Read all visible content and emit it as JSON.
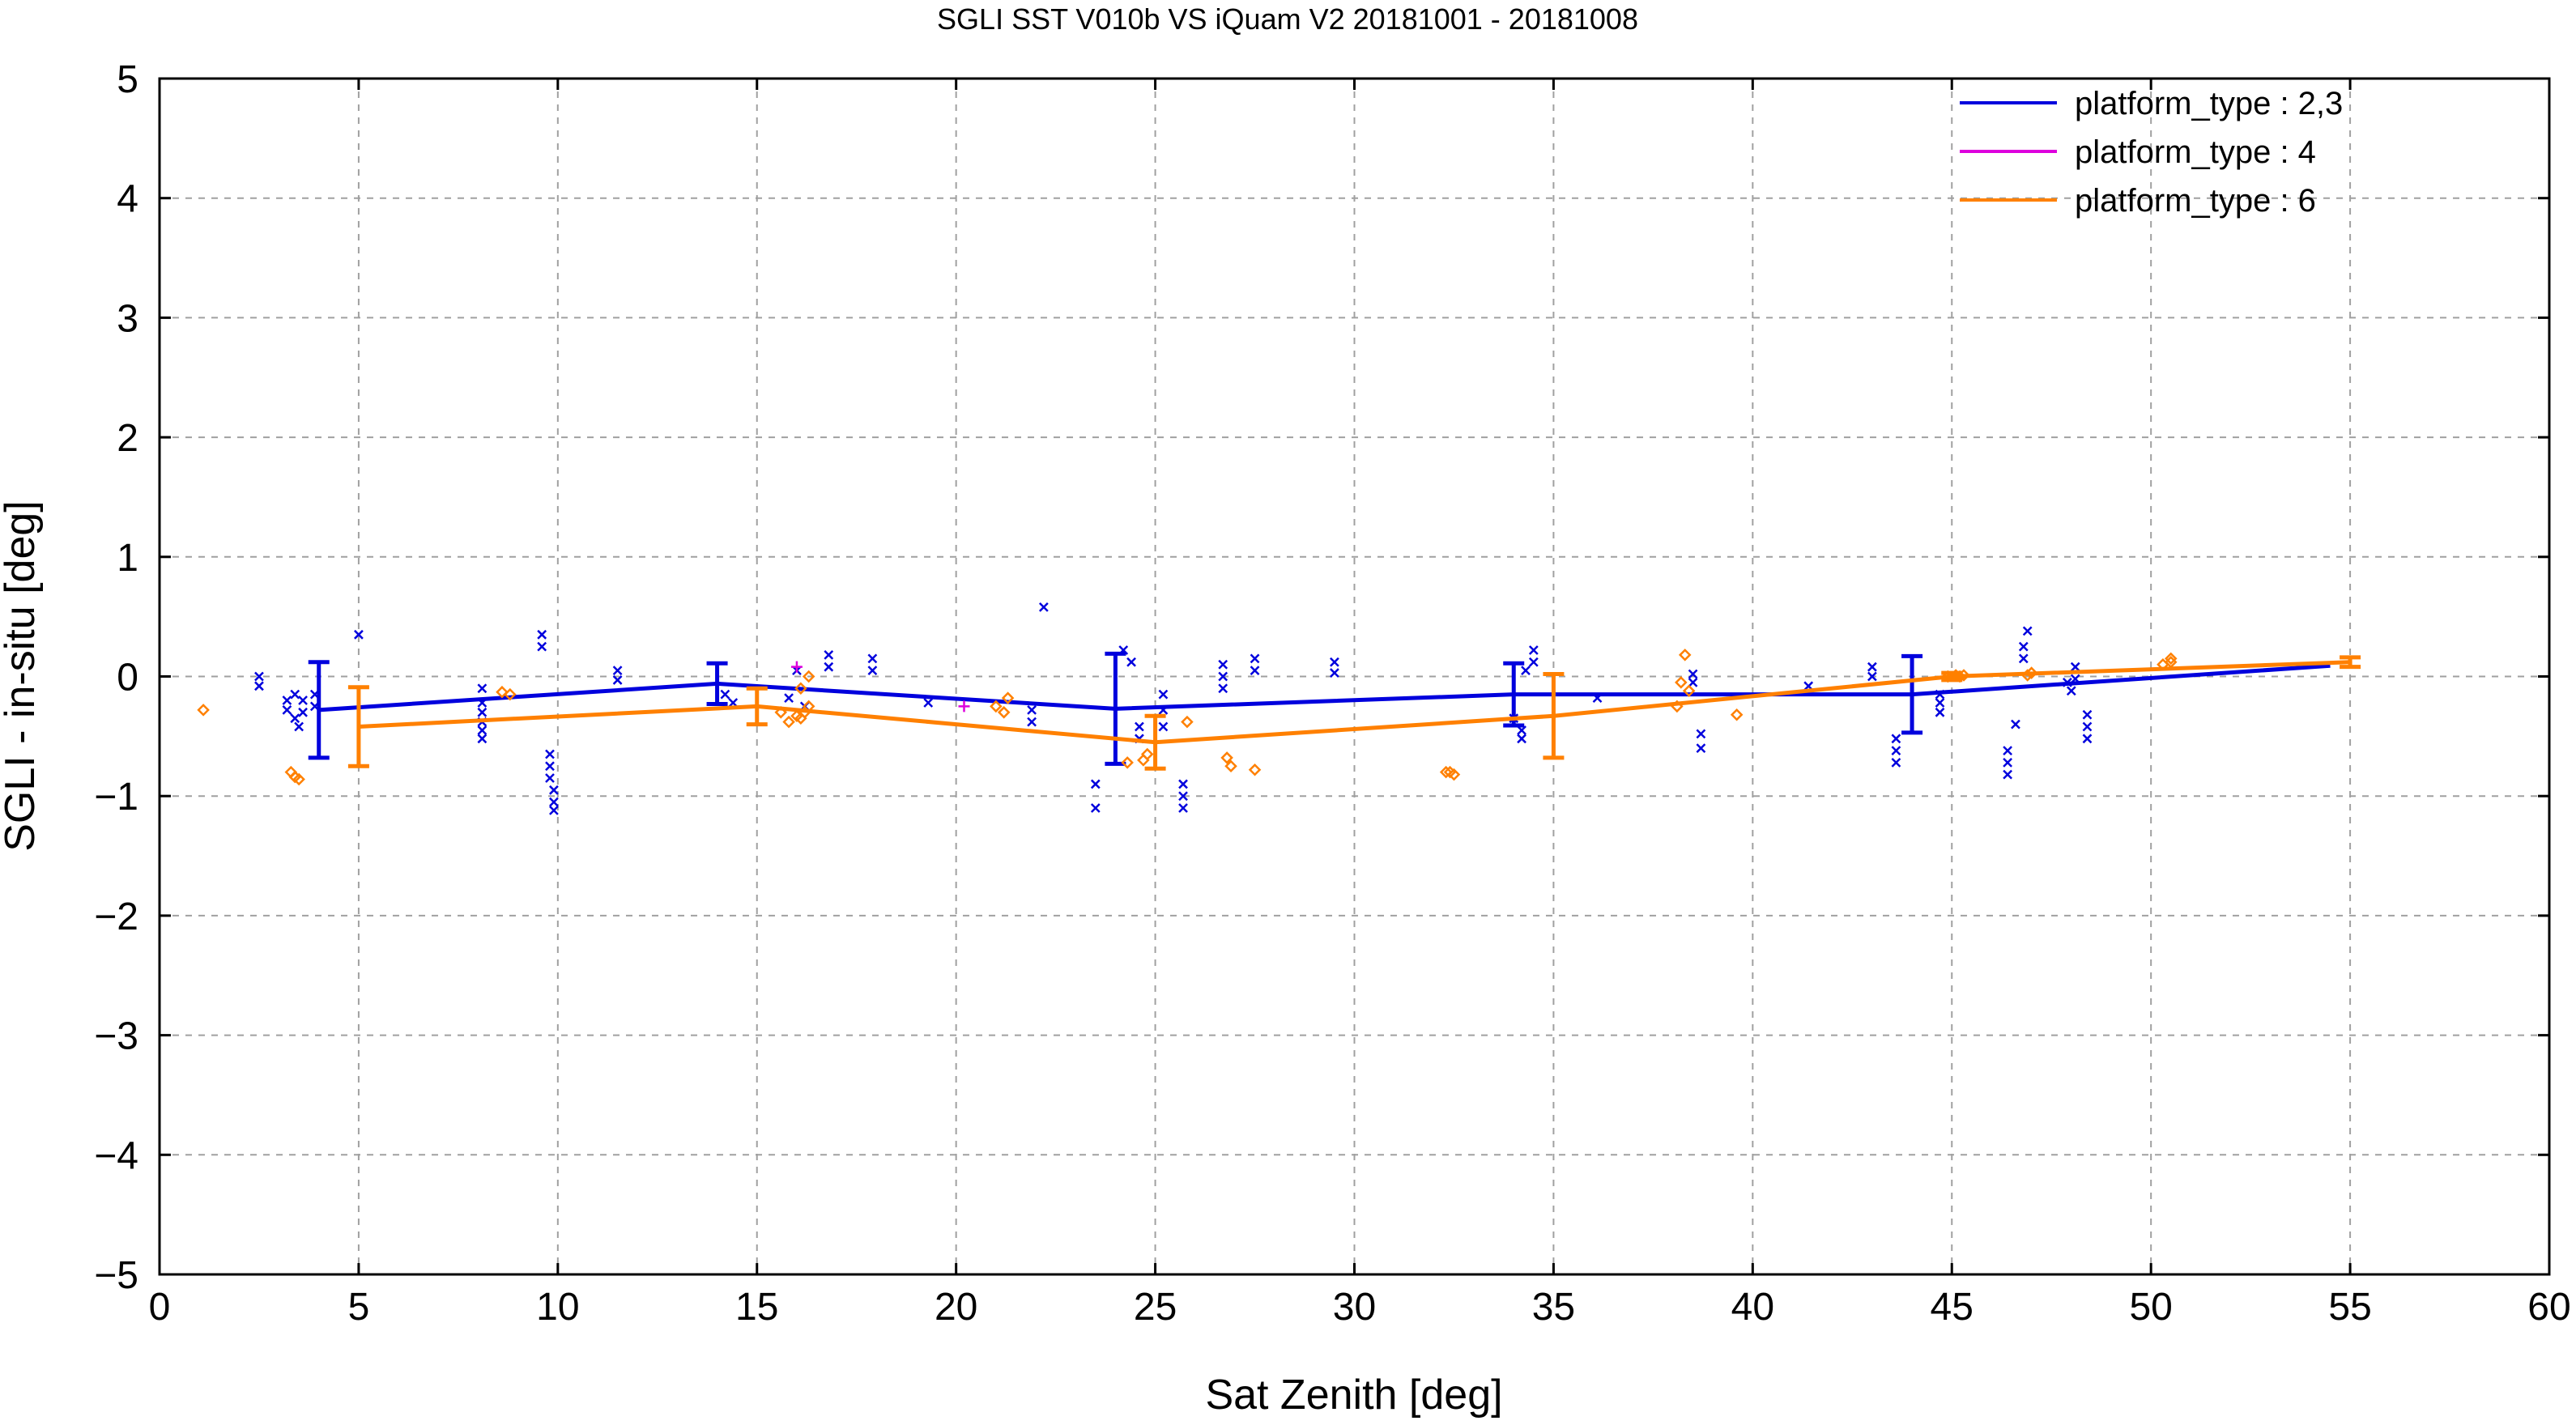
{
  "chart_data": {
    "type": "line",
    "title": "SGLI SST V010b VS iQuam V2 20181001 - 20181008",
    "xlabel": "Sat Zenith [deg]",
    "ylabel": "SGLI - in-situ [deg]",
    "xlim": [
      0,
      60
    ],
    "ylim": [
      -5,
      5
    ],
    "xticks": [
      0,
      5,
      10,
      15,
      20,
      25,
      30,
      35,
      40,
      45,
      50,
      55,
      60
    ],
    "xtick_labels": [
      "0",
      "5",
      "10",
      "15",
      "20",
      "25",
      "30",
      "35",
      "40",
      "45",
      "50",
      "55",
      "60"
    ],
    "yticks": [
      -5,
      -4,
      -3,
      -2,
      -1,
      0,
      1,
      2,
      3,
      4,
      5
    ],
    "ytick_labels": [
      "−5",
      "−4",
      "−3",
      "−2",
      "−1",
      "0",
      "1",
      "2",
      "3",
      "4",
      "5"
    ],
    "grid": true,
    "legend_position": "top-right",
    "series": [
      {
        "name": "platform_type : 2,3",
        "color": "#0000dd",
        "marker": "x",
        "line": {
          "x": [
            4,
            14,
            24,
            34,
            44,
            54.5
          ],
          "y": [
            -0.28,
            -0.06,
            -0.27,
            -0.15,
            -0.15,
            0.09
          ],
          "err": [
            0.4,
            0.17,
            0.46,
            0.26,
            0.32,
            0
          ]
        },
        "points": [
          [
            2.5,
            0
          ],
          [
            2.5,
            -0.08
          ],
          [
            3.2,
            -0.2
          ],
          [
            3.2,
            -0.28
          ],
          [
            3.4,
            -0.15
          ],
          [
            3.4,
            -0.35
          ],
          [
            3.5,
            -0.42
          ],
          [
            3.6,
            -0.2
          ],
          [
            3.6,
            -0.3
          ],
          [
            3.9,
            -0.15
          ],
          [
            3.9,
            -0.25
          ],
          [
            5.0,
            0.35
          ],
          [
            8.1,
            -0.1
          ],
          [
            8.1,
            -0.22
          ],
          [
            8.1,
            -0.3
          ],
          [
            8.1,
            -0.38
          ],
          [
            8.1,
            -0.45
          ],
          [
            8.1,
            -0.52
          ],
          [
            9.6,
            0.35
          ],
          [
            9.6,
            0.25
          ],
          [
            9.8,
            -0.65
          ],
          [
            9.8,
            -0.75
          ],
          [
            9.8,
            -0.85
          ],
          [
            9.9,
            -0.95
          ],
          [
            9.9,
            -1.05
          ],
          [
            9.9,
            -1.12
          ],
          [
            11.5,
            0.05
          ],
          [
            11.5,
            -0.03
          ],
          [
            14.2,
            -0.15
          ],
          [
            14.4,
            -0.22
          ],
          [
            15.8,
            -0.18
          ],
          [
            16.0,
            0.05
          ],
          [
            16.2,
            -0.25
          ],
          [
            16.8,
            0.18
          ],
          [
            16.8,
            0.08
          ],
          [
            17.9,
            0.15
          ],
          [
            17.9,
            0.05
          ],
          [
            19.3,
            -0.22
          ],
          [
            21.9,
            -0.28
          ],
          [
            21.9,
            -0.38
          ],
          [
            22.2,
            0.58
          ],
          [
            23.5,
            -0.9
          ],
          [
            23.5,
            -1.1
          ],
          [
            24.2,
            0.22
          ],
          [
            24.4,
            0.12
          ],
          [
            24.6,
            -0.42
          ],
          [
            24.6,
            -0.52
          ],
          [
            25.2,
            -0.15
          ],
          [
            25.2,
            -0.28
          ],
          [
            25.2,
            -0.42
          ],
          [
            25.7,
            -0.9
          ],
          [
            25.7,
            -1.0
          ],
          [
            25.7,
            -1.1
          ],
          [
            26.7,
            0.1
          ],
          [
            26.7,
            0
          ],
          [
            26.7,
            -0.1
          ],
          [
            27.5,
            0.15
          ],
          [
            27.5,
            0.05
          ],
          [
            29.5,
            0.12
          ],
          [
            29.5,
            0.03
          ],
          [
            34.0,
            -0.35
          ],
          [
            34.2,
            -0.45
          ],
          [
            34.2,
            -0.52
          ],
          [
            34.3,
            0.05
          ],
          [
            34.5,
            0.22
          ],
          [
            34.5,
            0.12
          ],
          [
            36.1,
            -0.18
          ],
          [
            38.5,
            -0.05
          ],
          [
            38.5,
            0.02
          ],
          [
            38.7,
            -0.48
          ],
          [
            38.7,
            -0.6
          ],
          [
            41.4,
            -0.08
          ],
          [
            43.0,
            0.08
          ],
          [
            43.0,
            0
          ],
          [
            43.6,
            -0.52
          ],
          [
            43.6,
            -0.62
          ],
          [
            43.6,
            -0.72
          ],
          [
            44.7,
            -0.15
          ],
          [
            44.7,
            -0.22
          ],
          [
            44.7,
            -0.3
          ],
          [
            46.4,
            -0.62
          ],
          [
            46.4,
            -0.72
          ],
          [
            46.4,
            -0.82
          ],
          [
            46.6,
            -0.4
          ],
          [
            46.8,
            0.25
          ],
          [
            46.8,
            0.15
          ],
          [
            46.9,
            0.38
          ],
          [
            47.9,
            -0.05
          ],
          [
            48.0,
            -0.12
          ],
          [
            48.1,
            0.08
          ],
          [
            48.1,
            -0.02
          ],
          [
            48.4,
            -0.32
          ],
          [
            48.4,
            -0.42
          ],
          [
            48.4,
            -0.52
          ]
        ]
      },
      {
        "name": "platform_type : 4",
        "color": "#dd00dd",
        "marker": "+",
        "line": {
          "x": [],
          "y": [],
          "err": []
        },
        "points": [
          [
            16.0,
            0.08
          ],
          [
            20.2,
            -0.25
          ]
        ]
      },
      {
        "name": "platform_type : 6",
        "color": "#ff8000",
        "marker": "diamond",
        "line": {
          "x": [
            5,
            15,
            25,
            35,
            45,
            55
          ],
          "y": [
            -0.42,
            -0.25,
            -0.55,
            -0.33,
            0,
            0.12
          ],
          "err": [
            0.33,
            0.15,
            0.22,
            0.35,
            0.03,
            0.04
          ]
        },
        "points": [
          [
            1.1,
            -0.28
          ],
          [
            3.3,
            -0.8
          ],
          [
            3.4,
            -0.84
          ],
          [
            3.5,
            -0.86
          ],
          [
            8.6,
            -0.13
          ],
          [
            8.8,
            -0.15
          ],
          [
            15.6,
            -0.3
          ],
          [
            15.8,
            -0.38
          ],
          [
            16.0,
            -0.33
          ],
          [
            16.1,
            -0.35
          ],
          [
            16.2,
            -0.3
          ],
          [
            16.3,
            -0.25
          ],
          [
            16.3,
            0
          ],
          [
            16.1,
            -0.1
          ],
          [
            21.0,
            -0.25
          ],
          [
            21.2,
            -0.3
          ],
          [
            21.3,
            -0.18
          ],
          [
            24.3,
            -0.72
          ],
          [
            24.7,
            -0.7
          ],
          [
            24.8,
            -0.65
          ],
          [
            25.8,
            -0.38
          ],
          [
            26.8,
            -0.68
          ],
          [
            26.9,
            -0.75
          ],
          [
            27.5,
            -0.78
          ],
          [
            32.3,
            -0.8
          ],
          [
            32.4,
            -0.8
          ],
          [
            32.5,
            -0.82
          ],
          [
            38.1,
            -0.25
          ],
          [
            38.2,
            -0.05
          ],
          [
            38.3,
            0.18
          ],
          [
            38.4,
            -0.12
          ],
          [
            39.6,
            -0.32
          ],
          [
            44.9,
            0
          ],
          [
            45.1,
            0.01
          ],
          [
            45.2,
            0
          ],
          [
            45.3,
            0.01
          ],
          [
            46.9,
            0.01
          ],
          [
            47.0,
            0.03
          ],
          [
            50.3,
            0.1
          ],
          [
            50.5,
            0.15
          ],
          [
            50.5,
            0.12
          ]
        ]
      }
    ]
  }
}
